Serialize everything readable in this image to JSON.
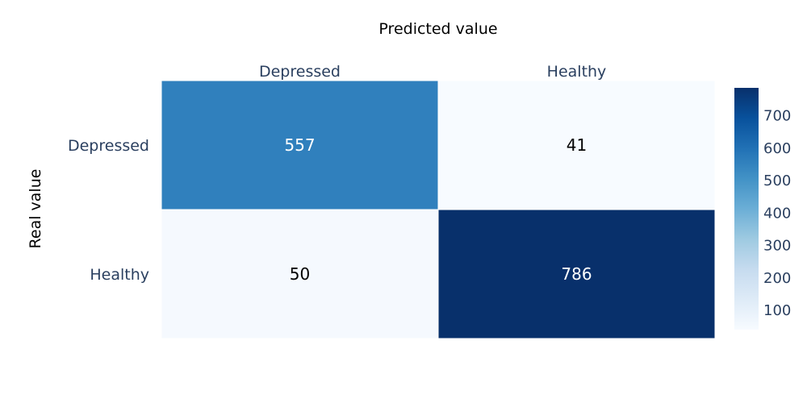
{
  "chart_data": {
    "type": "heatmap",
    "title": "",
    "xlabel": "Predicted value",
    "ylabel": "Real value",
    "x_categories": [
      "Depressed",
      "Healthy"
    ],
    "y_categories": [
      "Depressed",
      "Healthy"
    ],
    "z": [
      [
        557,
        41
      ],
      [
        50,
        786
      ]
    ],
    "colorscale": "Blues",
    "colorbar": {
      "range": [
        41,
        786
      ],
      "ticks": [
        100,
        200,
        300,
        400,
        500,
        600,
        700
      ],
      "placement": "right"
    },
    "x_axis_side": "top",
    "grid": false
  }
}
